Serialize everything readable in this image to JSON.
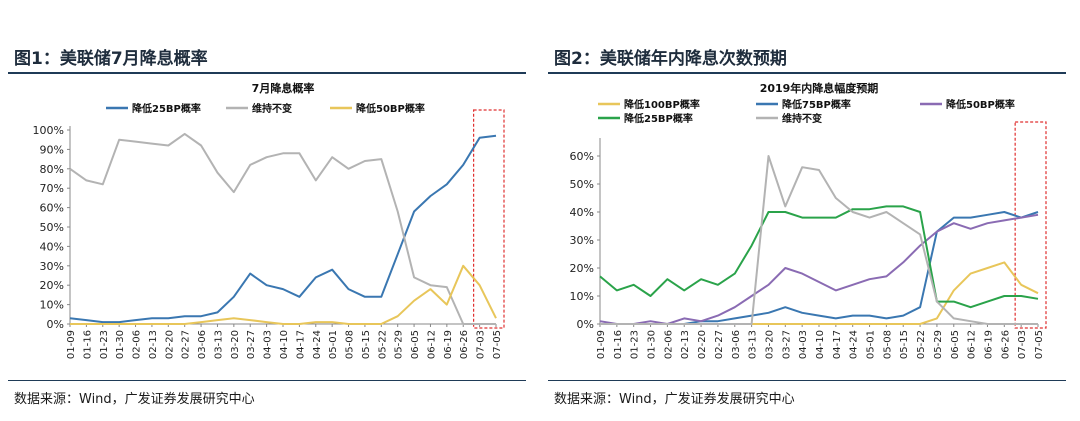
{
  "figures": [
    {
      "title": "图1：美联储7月降息概率",
      "source": "数据来源：Wind，广发证券发展研究中心"
    },
    {
      "title": "图2：美联储年内降息次数预期",
      "source": "数据来源：Wind，广发证券发展研究中心"
    }
  ],
  "chart_data": [
    {
      "type": "line",
      "title": "7月降息概率",
      "x": [
        "01-09",
        "01-16",
        "01-23",
        "01-30",
        "02-06",
        "02-13",
        "02-20",
        "02-27",
        "03-06",
        "03-13",
        "03-20",
        "03-27",
        "04-03",
        "04-10",
        "04-17",
        "04-24",
        "05-01",
        "05-08",
        "05-15",
        "05-22",
        "05-29",
        "06-05",
        "06-12",
        "06-19",
        "06-26",
        "07-03",
        "07-05"
      ],
      "ylim": [
        0,
        100
      ],
      "y_ticks": [
        "0%",
        "10%",
        "20%",
        "30%",
        "40%",
        "50%",
        "60%",
        "70%",
        "80%",
        "90%",
        "100%"
      ],
      "grid": false,
      "legend": "top",
      "highlight": "last week dashed red box",
      "series": [
        {
          "name": "降低25BP概率",
          "color": "#3a77b1",
          "values": [
            3,
            2,
            1,
            1,
            2,
            3,
            3,
            4,
            4,
            6,
            14,
            26,
            20,
            18,
            14,
            24,
            28,
            18,
            14,
            14,
            36,
            58,
            66,
            72,
            82,
            96,
            97
          ]
        },
        {
          "name": "维持不变",
          "color": "#b3b3b3",
          "values": [
            80,
            74,
            72,
            95,
            94,
            93,
            92,
            98,
            92,
            78,
            68,
            82,
            86,
            88,
            88,
            74,
            86,
            80,
            84,
            85,
            58,
            24,
            20,
            19,
            0,
            0,
            0
          ]
        },
        {
          "name": "降低50BP概率",
          "color": "#e8c65a",
          "values": [
            0,
            0,
            0,
            0,
            0,
            0,
            0,
            0,
            1,
            2,
            3,
            2,
            1,
            0,
            0,
            1,
            1,
            0,
            0,
            0,
            4,
            12,
            18,
            10,
            30,
            20,
            3
          ]
        }
      ]
    },
    {
      "type": "line",
      "title": "2019年内降息幅度预期",
      "x": [
        "01-09",
        "01-16",
        "01-23",
        "01-30",
        "02-06",
        "02-13",
        "02-20",
        "02-27",
        "03-06",
        "03-13",
        "03-20",
        "03-27",
        "04-03",
        "04-10",
        "04-17",
        "04-24",
        "05-01",
        "05-08",
        "05-15",
        "05-22",
        "05-29",
        "06-05",
        "06-12",
        "06-19",
        "06-26",
        "07-03",
        "07-05"
      ],
      "ylim": [
        0,
        65
      ],
      "y_ticks": [
        "0%",
        "10%",
        "20%",
        "30%",
        "40%",
        "50%",
        "60%"
      ],
      "grid": false,
      "legend": "top",
      "highlight": "last week dashed red box",
      "series": [
        {
          "name": "降低100BP概率",
          "color": "#e8c65a",
          "values": [
            0,
            0,
            0,
            0,
            0,
            0,
            0,
            0,
            0,
            0,
            0,
            0,
            0,
            0,
            0,
            0,
            0,
            0,
            0,
            0,
            2,
            12,
            18,
            20,
            22,
            14,
            11
          ]
        },
        {
          "name": "降低75BP概率",
          "color": "#3a77b1",
          "values": [
            0,
            0,
            0,
            0,
            0,
            0,
            1,
            1,
            2,
            3,
            4,
            6,
            4,
            3,
            2,
            3,
            3,
            2,
            3,
            6,
            33,
            38,
            38,
            39,
            40,
            38,
            40
          ]
        },
        {
          "name": "降低50BP概率",
          "color": "#8a6bb3",
          "values": [
            1,
            0,
            0,
            1,
            0,
            2,
            1,
            3,
            6,
            10,
            14,
            20,
            18,
            15,
            12,
            14,
            16,
            17,
            22,
            28,
            33,
            36,
            34,
            36,
            37,
            38,
            39
          ]
        },
        {
          "name": "降低25BP概率",
          "color": "#2aa34a",
          "values": [
            17,
            12,
            14,
            10,
            16,
            12,
            16,
            14,
            18,
            28,
            40,
            40,
            38,
            38,
            38,
            41,
            41,
            42,
            42,
            40,
            8,
            8,
            6,
            8,
            10,
            10,
            9
          ]
        },
        {
          "name": "维持不变",
          "color": "#b3b3b3",
          "values": [
            0,
            0,
            0,
            0,
            0,
            0,
            0,
            0,
            0,
            0,
            60,
            42,
            56,
            55,
            45,
            40,
            38,
            40,
            36,
            32,
            8,
            2,
            1,
            0,
            0,
            0,
            0
          ]
        }
      ]
    }
  ]
}
